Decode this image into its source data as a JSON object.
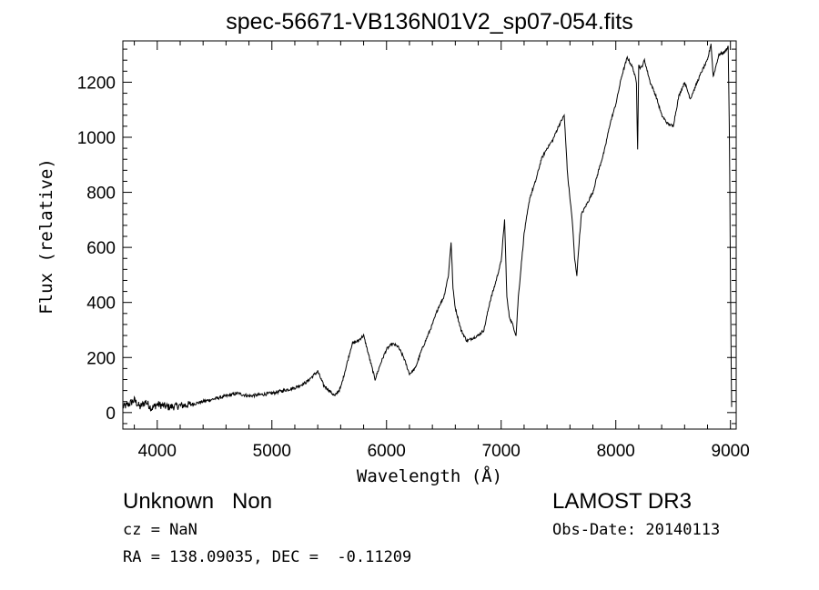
{
  "chart_data": {
    "type": "line",
    "title": "spec-56671-VB136N01V2_sp07-054.fits",
    "xlabel": "Wavelength (Å)",
    "ylabel": "Flux (relative)",
    "xlim": [
      3700,
      9050
    ],
    "ylim": [
      -60,
      1350
    ],
    "x_ticks": [
      4000,
      5000,
      6000,
      7000,
      8000,
      9000
    ],
    "y_ticks": [
      0,
      200,
      400,
      600,
      800,
      1000,
      1200
    ],
    "grid": false,
    "line_color": "#000000",
    "series": [
      {
        "name": "flux",
        "x": [
          3700,
          3750,
          3800,
          3850,
          3900,
          3950,
          4000,
          4100,
          4200,
          4300,
          4400,
          4500,
          4600,
          4700,
          4800,
          4900,
          5000,
          5100,
          5200,
          5300,
          5400,
          5450,
          5500,
          5550,
          5600,
          5650,
          5700,
          5750,
          5800,
          5850,
          5900,
          5950,
          6000,
          6050,
          6100,
          6150,
          6200,
          6250,
          6300,
          6350,
          6400,
          6450,
          6500,
          6540,
          6563,
          6580,
          6600,
          6650,
          6700,
          6750,
          6800,
          6850,
          6900,
          6950,
          7000,
          7030,
          7050,
          7070,
          7100,
          7130,
          7150,
          7200,
          7250,
          7300,
          7350,
          7400,
          7450,
          7500,
          7550,
          7580,
          7600,
          7620,
          7640,
          7660,
          7680,
          7700,
          7750,
          7800,
          7850,
          7900,
          7950,
          8000,
          8050,
          8100,
          8150,
          8180,
          8190,
          8200,
          8220,
          8250,
          8300,
          8350,
          8400,
          8450,
          8500,
          8550,
          8600,
          8650,
          8700,
          8750,
          8800,
          8830,
          8850,
          8880,
          8900,
          8950,
          8980,
          8990,
          9000,
          9010
        ],
        "y": [
          20,
          30,
          45,
          20,
          40,
          15,
          30,
          20,
          25,
          30,
          40,
          50,
          60,
          70,
          60,
          65,
          70,
          80,
          90,
          110,
          150,
          100,
          80,
          60,
          90,
          170,
          250,
          260,
          280,
          200,
          120,
          180,
          230,
          250,
          240,
          200,
          140,
          160,
          220,
          270,
          320,
          380,
          420,
          500,
          620,
          450,
          380,
          300,
          260,
          270,
          280,
          300,
          400,
          470,
          550,
          700,
          420,
          350,
          320,
          280,
          420,
          650,
          780,
          840,
          920,
          960,
          990,
          1040,
          1080,
          860,
          780,
          700,
          560,
          500,
          620,
          720,
          760,
          800,
          880,
          950,
          1050,
          1120,
          1220,
          1290,
          1250,
          1200,
          960,
          1260,
          1250,
          1280,
          1200,
          1150,
          1080,
          1050,
          1040,
          1150,
          1200,
          1140,
          1190,
          1240,
          1280,
          1340,
          1220,
          1270,
          1300,
          1310,
          1330,
          1050,
          480,
          20
        ]
      }
    ]
  },
  "info": {
    "left_line1": "Unknown   Non",
    "left_line2": "cz = NaN",
    "left_line3": "RA = 138.09035, DEC =  -0.11209",
    "right_line1": "LAMOST DR3",
    "right_line2": "Obs-Date: 20140113"
  }
}
